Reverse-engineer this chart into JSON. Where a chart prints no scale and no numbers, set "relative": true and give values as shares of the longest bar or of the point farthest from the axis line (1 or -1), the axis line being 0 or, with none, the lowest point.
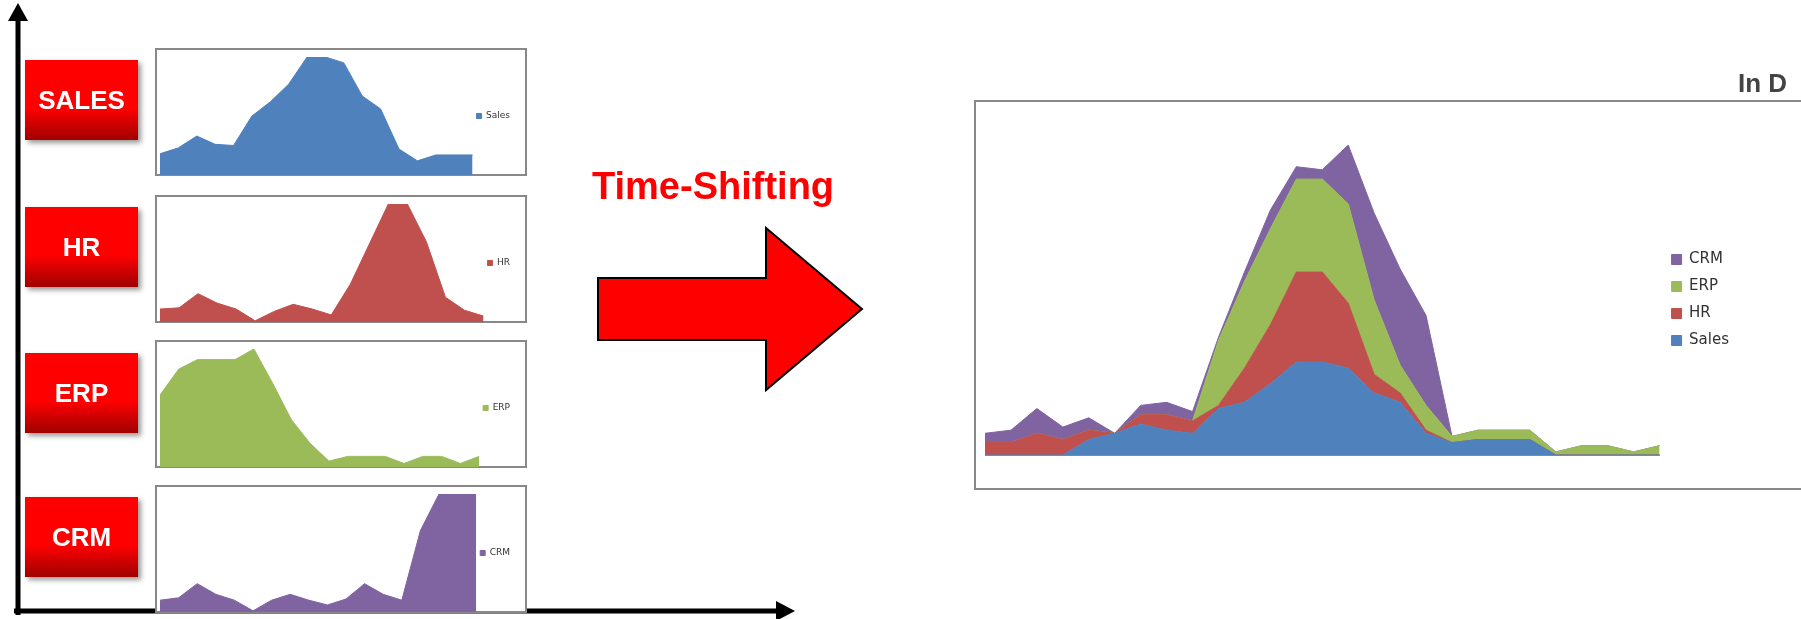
{
  "chart_data": [
    {
      "type": "area",
      "title": "SALES",
      "relative": true,
      "legend": "right",
      "categories": [
        null,
        null,
        null,
        null,
        null,
        null,
        null,
        null,
        null,
        null,
        null,
        null,
        null,
        null,
        null,
        null,
        null,
        null
      ],
      "series": [
        {
          "name": "Sales",
          "color": "#4f81bd",
          "values": [
            0.18,
            0.23,
            0.33,
            0.26,
            0.25,
            0.5,
            0.62,
            0.77,
            1,
            1,
            0.95,
            0.67,
            0.56,
            0.22,
            0.12,
            0.17,
            0.17,
            0.17
          ]
        }
      ]
    },
    {
      "type": "area",
      "title": "HR",
      "relative": true,
      "legend": "right",
      "categories": [
        null,
        null,
        null,
        null,
        null,
        null,
        null,
        null,
        null,
        null,
        null,
        null,
        null,
        null,
        null,
        null,
        null,
        null
      ],
      "series": [
        {
          "name": "HR",
          "color": "#c0504d",
          "values": [
            0.11,
            0.12,
            0.24,
            0.16,
            0.11,
            0.01,
            0.09,
            0.15,
            0.11,
            0.06,
            0.32,
            0.66,
            1,
            1,
            0.68,
            0.21,
            0.1,
            0.05
          ]
        }
      ]
    },
    {
      "type": "area",
      "title": "ERP",
      "relative": true,
      "legend": "right",
      "categories": [
        null,
        null,
        null,
        null,
        null,
        null,
        null,
        null,
        null,
        null,
        null,
        null,
        null,
        null,
        null,
        null,
        null,
        null
      ],
      "series": [
        {
          "name": "ERP",
          "color": "#9bbb59",
          "values": [
            0.61,
            0.83,
            0.91,
            0.91,
            0.91,
            1,
            0.71,
            0.4,
            0.2,
            0.05,
            0.09,
            0.09,
            0.09,
            0.03,
            0.09,
            0.09,
            0.03,
            0.09
          ]
        }
      ]
    },
    {
      "type": "area",
      "title": "CRM",
      "relative": true,
      "legend": "right",
      "categories": [
        null,
        null,
        null,
        null,
        null,
        null,
        null,
        null,
        null,
        null,
        null,
        null,
        null,
        null,
        null,
        null,
        null,
        null
      ],
      "series": [
        {
          "name": "CRM",
          "color": "#8064a2",
          "values": [
            0.1,
            0.12,
            0.24,
            0.15,
            0.1,
            0.01,
            0.1,
            0.15,
            0.1,
            0.06,
            0.11,
            0.24,
            0.15,
            0.1,
            0.69,
            1,
            1,
            1
          ]
        }
      ]
    },
    {
      "type": "area",
      "stacked": true,
      "relative": true,
      "legend": "right",
      "annotations": [
        "Time-Shifting",
        "In D"
      ],
      "categories": [
        null,
        null,
        null,
        null,
        null,
        null,
        null,
        null,
        null,
        null,
        null,
        null,
        null,
        null,
        null,
        null,
        null,
        null,
        null,
        null,
        null,
        null,
        null,
        null,
        null,
        null,
        null
      ],
      "series": [
        {
          "name": "Sales",
          "color": "#4f81bd",
          "values": [
            0,
            0,
            0,
            0,
            0.05,
            0.07,
            0.1,
            0.08,
            0.07,
            0.15,
            0.17,
            0.23,
            0.3,
            0.3,
            0.28,
            0.2,
            0.17,
            0.07,
            0.04,
            0.05,
            0.05,
            0.05,
            0,
            0,
            0,
            0,
            0
          ]
        },
        {
          "name": "HR",
          "color": "#c0504d",
          "values": [
            0.04,
            0.04,
            0.07,
            0.05,
            0.03,
            0,
            0.03,
            0.05,
            0.04,
            0.01,
            0.11,
            0.19,
            0.29,
            0.29,
            0.21,
            0.06,
            0.03,
            0.01,
            0,
            0,
            0,
            0,
            0,
            0,
            0,
            0,
            0
          ]
        },
        {
          "name": "ERP",
          "color": "#9bbb59",
          "values": [
            0,
            0,
            0,
            0,
            0,
            0,
            0,
            0,
            0,
            0.21,
            0.28,
            0.31,
            0.3,
            0.3,
            0.32,
            0.24,
            0.09,
            0.08,
            0.02,
            0.03,
            0.03,
            0.03,
            0.01,
            0.03,
            0.03,
            0.01,
            0.03
          ]
        },
        {
          "name": "CRM",
          "color": "#8064a2",
          "values": [
            0.03,
            0.04,
            0.08,
            0.04,
            0.04,
            0,
            0.03,
            0.04,
            0.03,
            0.01,
            0.03,
            0.06,
            0.04,
            0.03,
            0.19,
            0.28,
            0.31,
            0.29,
            0,
            0,
            0,
            0,
            0,
            0,
            0,
            0,
            0
          ]
        }
      ]
    }
  ]
}
